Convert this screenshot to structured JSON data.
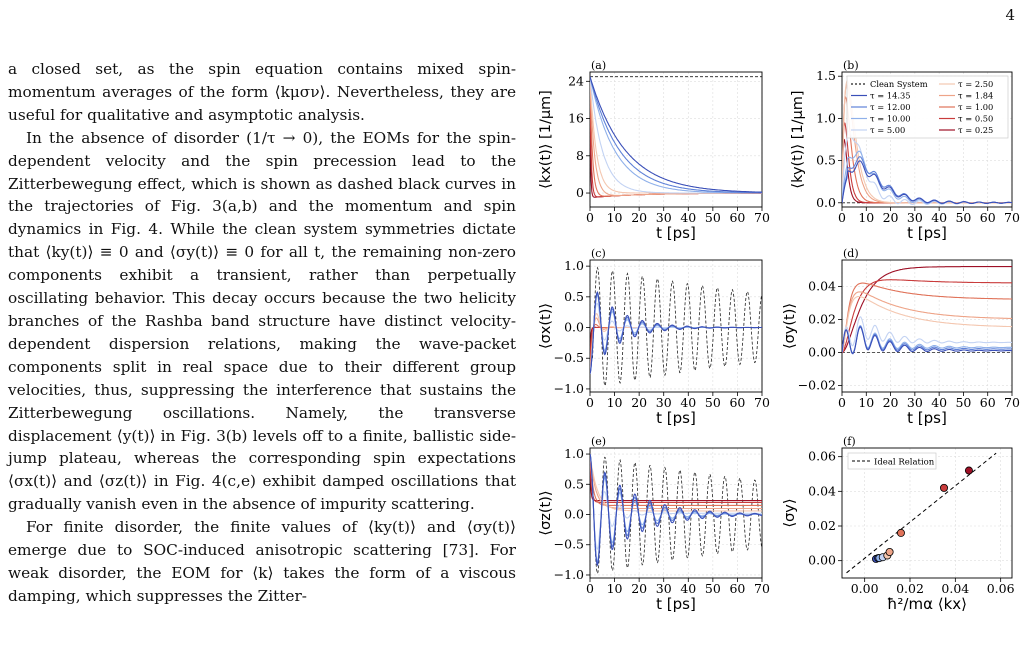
{
  "page": {
    "number": "4"
  },
  "body": {
    "paragraphs": [
      "a closed set, as the spin equation contains mixed spin-momentum averages of the form ⟨kμσν⟩. Nevertheless, they are useful for qualitative and asymptotic analysis.",
      "In the absence of disorder (1/τ → 0), the EOMs for the spin-dependent velocity and the spin precession lead to the Zitterbewegung effect, which is shown as dashed black curves in the trajectories of Fig. 3(a,b) and the momentum and spin dynamics in Fig. 4. While the clean system symmetries dictate that ⟨ky(t)⟩ ≡ 0 and ⟨σy(t)⟩ ≡ 0 for all t, the remaining non-zero components exhibit a transient, rather than perpetually oscillating behavior. This decay occurs because the two helicity branches of the Rashba band structure have distinct velocity-dependent dispersion relations, making the wave-packet components split in real space due to their different group velocities, thus, suppressing the interference that sustains the Zitterbewegung oscillations. Namely, the transverse displacement ⟨y(t)⟩ in Fig. 3(b) levels off to a finite, ballistic side-jump plateau, whereas the corresponding spin expectations ⟨σx(t)⟩ and ⟨σz(t)⟩ in Fig. 4(c,e) exhibit damped oscillations that gradually vanish even in the absence of impurity scattering.",
      "For finite disorder, the finite values of ⟨ky(t)⟩ and ⟨σy(t)⟩ emerge due to SOC-induced anisotropic scattering [73]. For weak disorder, the EOM for ⟨k⟩ takes the form of a viscous damping, which suppresses the Zitter-"
    ]
  },
  "figure": {
    "legend": {
      "clean": "Clean System",
      "taus": [
        "τ = 14.35",
        "τ = 12.00",
        "τ = 10.00",
        "τ = 5.00",
        "τ = 2.50",
        "τ = 1.84",
        "τ = 1.00",
        "τ = 0.50",
        "τ = 0.25"
      ],
      "colors": [
        "#3a4fb8",
        "#5f82d8",
        "#8fb0ea",
        "#c3d3f3",
        "#f4c7b0",
        "#eea488",
        "#e0735a",
        "#c93c3c",
        "#9e1026"
      ],
      "clean_color": "#222222"
    },
    "f_legend": "Ideal Relation",
    "chart_data": [
      {
        "panel": "(a)",
        "type": "line",
        "xlabel": "t [ps]",
        "ylabel": "⟨kx(t)⟩ [1/μm]",
        "xlim": [
          0,
          70
        ],
        "ylim": [
          -3,
          26
        ],
        "xticks": [
          "0",
          "10",
          "20",
          "30",
          "40",
          "50",
          "60",
          "70"
        ],
        "yticks": [
          "0",
          "8",
          "16",
          "24"
        ],
        "clean_value": 25,
        "series_initial": 25,
        "series_tau_ps": [
          14.35,
          12.0,
          10.0,
          5.0,
          2.5,
          1.84,
          1.0,
          0.5,
          0.25
        ]
      },
      {
        "panel": "(b)",
        "type": "line",
        "xlabel": "t [ps]",
        "ylabel": "⟨ky(t)⟩ [1/μm]",
        "xlim": [
          0,
          70
        ],
        "ylim": [
          -0.05,
          1.55
        ],
        "xticks": [
          "0",
          "10",
          "20",
          "30",
          "40",
          "50",
          "60",
          "70"
        ],
        "yticks": [
          "0.0",
          "0.5",
          "1.0",
          "1.5"
        ],
        "peak_values": [
          0.45,
          0.5,
          0.6,
          0.85,
          1.45,
          1.4,
          1.25,
          0.95,
          0.75
        ]
      },
      {
        "panel": "(c)",
        "type": "line",
        "xlabel": "t [ps]",
        "ylabel": "⟨σx(t)⟩",
        "xlim": [
          0,
          70
        ],
        "ylim": [
          -1.05,
          1.1
        ],
        "xticks": [
          "0",
          "10",
          "20",
          "30",
          "40",
          "50",
          "60",
          "70"
        ],
        "yticks": [
          "−1.0",
          "−0.5",
          "0.0",
          "0.5",
          "1.0"
        ],
        "clean_amplitude": 1.0,
        "oscillation_period_ps": 6.1
      },
      {
        "panel": "(d)",
        "type": "line",
        "xlabel": "t [ps]",
        "ylabel": "⟨σy(t)⟩",
        "xlim": [
          0,
          70
        ],
        "ylim": [
          -0.024,
          0.056
        ],
        "xticks": [
          "0",
          "10",
          "20",
          "30",
          "40",
          "50",
          "60",
          "70"
        ],
        "yticks": [
          "−0.02",
          "0.00",
          "0.02",
          "0.04"
        ],
        "final_values": [
          0.001,
          0.002,
          0.003,
          0.006,
          0.015,
          0.02,
          0.032,
          0.042,
          0.052
        ]
      },
      {
        "panel": "(e)",
        "type": "line",
        "xlabel": "t [ps]",
        "ylabel": "⟨σz(t)⟩",
        "xlim": [
          0,
          70
        ],
        "ylim": [
          -1.05,
          1.1
        ],
        "xticks": [
          "0",
          "10",
          "20",
          "30",
          "40",
          "50",
          "60",
          "70"
        ],
        "yticks": [
          "−1.0",
          "−0.5",
          "0.0",
          "0.5",
          "1.0"
        ],
        "clean_amplitude": 1.0,
        "final_values": [
          0.0,
          0.0,
          0.0,
          0.02,
          0.06,
          0.1,
          0.15,
          0.2,
          0.23
        ]
      },
      {
        "panel": "(f)",
        "type": "scatter",
        "xlabel": "ħ²/mα ⟨kx⟩",
        "ylabel": "⟨σy⟩",
        "xlim": [
          -0.01,
          0.065
        ],
        "ylim": [
          -0.01,
          0.065
        ],
        "xticks": [
          "0.00",
          "0.02",
          "0.04",
          "0.06"
        ],
        "yticks": [
          "0.00",
          "0.02",
          "0.04",
          "0.06"
        ],
        "points": [
          {
            "x": 0.005,
            "y": 0.001
          },
          {
            "x": 0.006,
            "y": 0.0015
          },
          {
            "x": 0.0065,
            "y": 0.0015
          },
          {
            "x": 0.008,
            "y": 0.002
          },
          {
            "x": 0.01,
            "y": 0.003
          },
          {
            "x": 0.011,
            "y": 0.005
          },
          {
            "x": 0.016,
            "y": 0.016
          },
          {
            "x": 0.035,
            "y": 0.042
          },
          {
            "x": 0.046,
            "y": 0.052
          }
        ],
        "ideal_line": [
          [
            -0.008,
            -0.007
          ],
          [
            0.058,
            0.062
          ]
        ]
      }
    ]
  }
}
